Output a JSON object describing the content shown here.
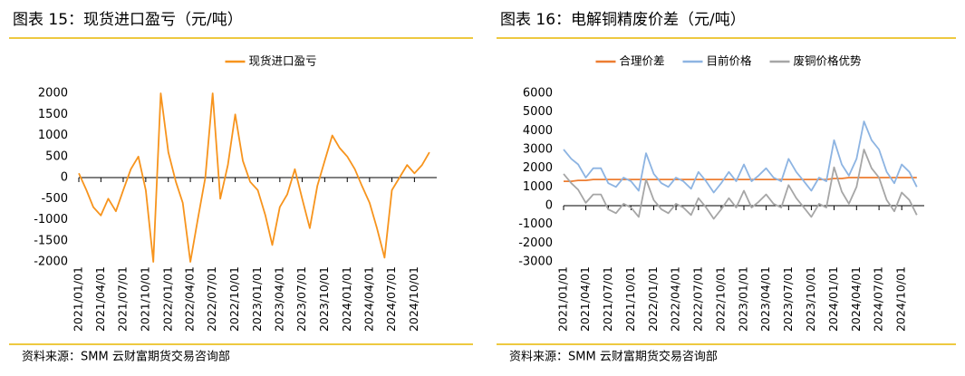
{
  "chart_data": [
    {
      "type": "line",
      "title": "图表 15：现货进口盈亏（元/吨）",
      "source": "资料来源：SMM 云财富期货交易咨询部",
      "x": [
        "2021/01/01",
        "2021/02/01",
        "2021/03/01",
        "2021/04/01",
        "2021/05/01",
        "2021/06/01",
        "2021/07/01",
        "2021/08/01",
        "2021/09/01",
        "2021/10/01",
        "2021/11/01",
        "2021/12/01",
        "2022/01/01",
        "2022/02/01",
        "2022/03/01",
        "2022/04/01",
        "2022/05/01",
        "2022/06/01",
        "2022/07/01",
        "2022/08/01",
        "2022/09/01",
        "2022/10/01",
        "2022/11/01",
        "2022/12/01",
        "2023/01/01",
        "2023/02/01",
        "2023/03/01",
        "2023/04/01",
        "2023/05/01",
        "2023/06/01",
        "2023/07/01",
        "2023/08/01",
        "2023/09/01",
        "2023/10/01",
        "2023/11/01",
        "2023/12/01",
        "2024/01/01",
        "2024/02/01",
        "2024/03/01",
        "2024/04/01",
        "2024/05/01",
        "2024/06/01",
        "2024/07/01",
        "2024/08/01",
        "2024/09/01",
        "2024/10/01",
        "2024/11/01",
        "2024/12/01"
      ],
      "series": [
        {
          "name": "现货进口盈亏",
          "color": "#f7941d",
          "values": [
            100,
            -300,
            -700,
            -900,
            -500,
            -800,
            -300,
            200,
            500,
            -300,
            -2000,
            2000,
            600,
            -100,
            -600,
            -2000,
            -1000,
            0,
            2000,
            -500,
            300,
            1500,
            400,
            -100,
            -300,
            -900,
            -1600,
            -700,
            -400,
            200,
            -500,
            -1200,
            -200,
            400,
            1000,
            700,
            500,
            200,
            -200,
            -600,
            -1200,
            -1900,
            -300,
            0,
            300,
            100,
            300,
            600
          ]
        }
      ],
      "xlim": [
        "2021/01/01",
        "2024/12/31"
      ],
      "xticks": [
        "2021/01/01",
        "2021/04/01",
        "2021/07/01",
        "2021/10/01",
        "2022/01/01",
        "2022/04/01",
        "2022/07/01",
        "2022/10/01",
        "2023/01/01",
        "2023/04/01",
        "2023/07/01",
        "2023/10/01",
        "2024/01/01",
        "2024/04/01",
        "2024/07/01",
        "2024/10/01"
      ],
      "ylim": [
        -2000,
        2000
      ],
      "yticks": [
        -2000,
        -1500,
        -1000,
        -500,
        0,
        500,
        1000,
        1500,
        2000
      ],
      "grid": false
    },
    {
      "type": "line",
      "title": "图表 16：电解铜精废价差（元/吨）",
      "source": "资料来源：SMM 云财富期货交易咨询部",
      "x": [
        "2021/01/01",
        "2021/02/01",
        "2021/03/01",
        "2021/04/01",
        "2021/05/01",
        "2021/06/01",
        "2021/07/01",
        "2021/08/01",
        "2021/09/01",
        "2021/10/01",
        "2021/11/01",
        "2021/12/01",
        "2022/01/01",
        "2022/02/01",
        "2022/03/01",
        "2022/04/01",
        "2022/05/01",
        "2022/06/01",
        "2022/07/01",
        "2022/08/01",
        "2022/09/01",
        "2022/10/01",
        "2022/11/01",
        "2022/12/01",
        "2023/01/01",
        "2023/02/01",
        "2023/03/01",
        "2023/04/01",
        "2023/05/01",
        "2023/06/01",
        "2023/07/01",
        "2023/08/01",
        "2023/09/01",
        "2023/10/01",
        "2023/11/01",
        "2023/12/01",
        "2024/01/01",
        "2024/02/01",
        "2024/03/01",
        "2024/04/01",
        "2024/05/01",
        "2024/06/01",
        "2024/07/01",
        "2024/08/01",
        "2024/09/01",
        "2024/10/01",
        "2024/11/01",
        "2024/12/01"
      ],
      "series": [
        {
          "name": "合理价差",
          "color": "#ed7d31",
          "values": [
            1300,
            1300,
            1350,
            1350,
            1400,
            1400,
            1400,
            1400,
            1400,
            1400,
            1400,
            1400,
            1400,
            1400,
            1400,
            1400,
            1400,
            1400,
            1400,
            1400,
            1400,
            1400,
            1400,
            1400,
            1400,
            1400,
            1400,
            1400,
            1400,
            1400,
            1400,
            1400,
            1400,
            1400,
            1400,
            1400,
            1450,
            1450,
            1500,
            1500,
            1500,
            1500,
            1500,
            1500,
            1500,
            1500,
            1500,
            1500
          ]
        },
        {
          "name": "目前价格",
          "color": "#8db4e2",
          "values": [
            3000,
            2500,
            2200,
            1500,
            2000,
            2000,
            1200,
            1000,
            1500,
            1300,
            800,
            2800,
            1700,
            1200,
            1000,
            1500,
            1300,
            900,
            1800,
            1300,
            700,
            1200,
            1800,
            1300,
            2200,
            1300,
            1600,
            2000,
            1500,
            1300,
            2500,
            1800,
            1300,
            800,
            1500,
            1300,
            3500,
            2200,
            1600,
            2500,
            4500,
            3500,
            3000,
            1800,
            1200,
            2200,
            1800,
            1000
          ]
        },
        {
          "name": "废铜价格优势",
          "color": "#a6a6a6",
          "values": [
            1700,
            1200,
            850,
            150,
            600,
            600,
            -200,
            -400,
            100,
            -100,
            -600,
            1400,
            300,
            -200,
            -400,
            100,
            -100,
            -500,
            400,
            -100,
            -700,
            -200,
            400,
            -100,
            800,
            -100,
            200,
            600,
            100,
            -100,
            1100,
            400,
            -100,
            -600,
            100,
            -100,
            2050,
            750,
            100,
            1000,
            3000,
            2000,
            1500,
            300,
            -300,
            700,
            300,
            -500
          ]
        }
      ],
      "xlim": [
        "2021/01/01",
        "2024/12/31"
      ],
      "xticks": [
        "2021/01/01",
        "2021/04/01",
        "2021/07/01",
        "2021/10/01",
        "2022/01/01",
        "2022/04/01",
        "2022/07/01",
        "2022/10/01",
        "2023/01/01",
        "2023/04/01",
        "2023/07/01",
        "2023/10/01",
        "2024/01/01",
        "2024/04/01",
        "2024/07/01",
        "2024/10/01"
      ],
      "ylim": [
        -3000,
        6000
      ],
      "yticks": [
        -3000,
        -2000,
        -1000,
        0,
        1000,
        2000,
        3000,
        4000,
        5000,
        6000
      ],
      "grid": false
    }
  ]
}
